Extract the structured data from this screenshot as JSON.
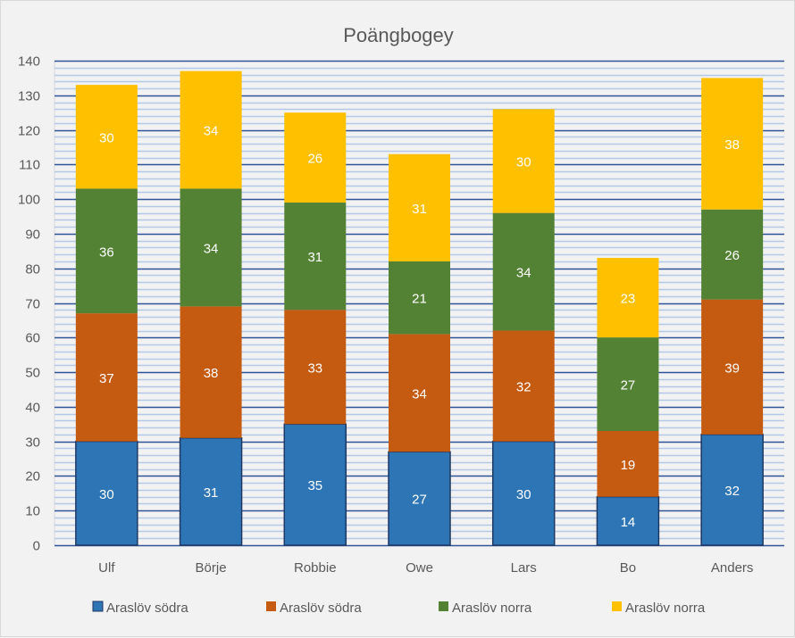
{
  "chart_data": {
    "type": "bar",
    "stacked": true,
    "title": "Poängbogey",
    "xlabel": "",
    "ylabel": "",
    "categories": [
      "Ulf",
      "Börje",
      "Robbie",
      "Owe",
      "Lars",
      "Bo",
      "Anders"
    ],
    "series": [
      {
        "name": "Araslöv södra",
        "color": "#2e75b6",
        "border": "#1f3864",
        "values": [
          30,
          31,
          35,
          27,
          30,
          14,
          32
        ]
      },
      {
        "name": "Araslöv södra",
        "color": "#c55a11",
        "border": null,
        "values": [
          37,
          38,
          33,
          34,
          32,
          19,
          39
        ]
      },
      {
        "name": "Araslöv norra",
        "color": "#548235",
        "border": null,
        "values": [
          36,
          34,
          31,
          21,
          34,
          27,
          26
        ]
      },
      {
        "name": "Araslöv norra",
        "color": "#ffc000",
        "border": null,
        "values": [
          30,
          34,
          26,
          31,
          30,
          23,
          38
        ]
      }
    ],
    "ylim": [
      0,
      140
    ],
    "y_major_step": 10,
    "y_minor_step": 2,
    "yticks": [
      "0",
      "10",
      "20",
      "30",
      "40",
      "50",
      "60",
      "70",
      "80",
      "90",
      "100",
      "110",
      "120",
      "130",
      "140"
    ],
    "grid": true,
    "grid_major_color": "#2f5597",
    "grid_minor_color": "#b4c7e7",
    "data_labels": true,
    "legend_position": "bottom"
  }
}
